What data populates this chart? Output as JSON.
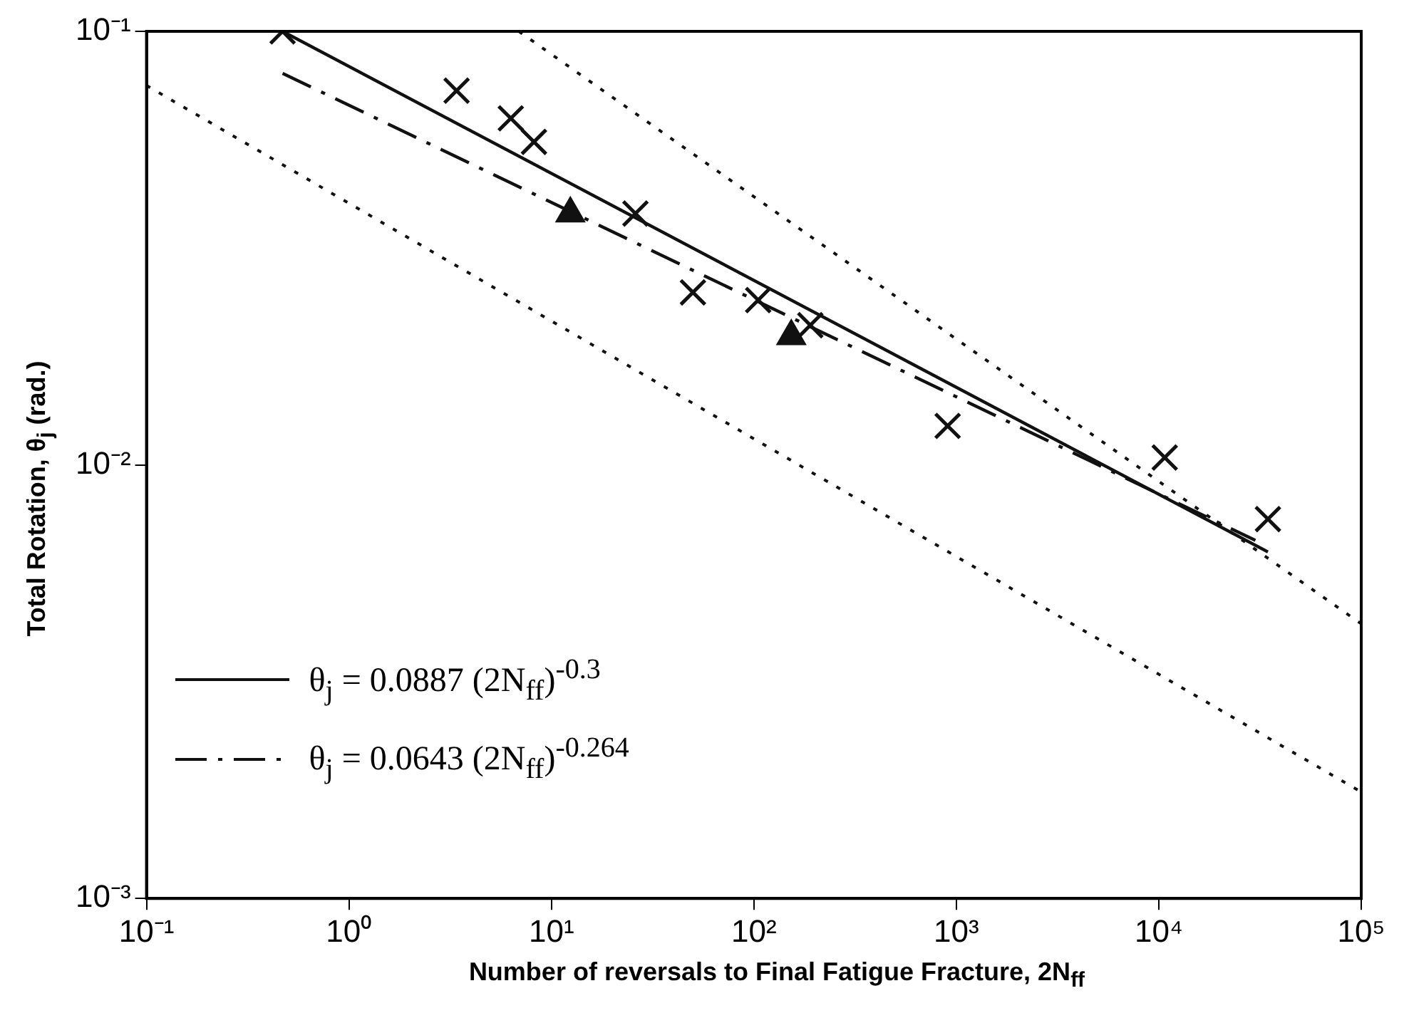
{
  "chart_data": {
    "type": "scatter",
    "xlabel": "Number of reversals to Final Fatigue Fracture, 2N$_{ff}$",
    "ylabel": "Total Rotation, θ$_{j}$ (rad.)",
    "log": "xy",
    "grid": false,
    "legend": "bottom left",
    "xlim": [
      0.1,
      100000
    ],
    "ylim": [
      0.001,
      0.1
    ],
    "xticks": [
      {
        "value": 0.1,
        "label": "10⁻¹"
      },
      {
        "value": 1,
        "label": "10⁰"
      },
      {
        "value": 10,
        "label": "10¹"
      },
      {
        "value": 100,
        "label": "10²"
      },
      {
        "value": 1000,
        "label": "10³"
      },
      {
        "value": 10000,
        "label": "10⁴"
      },
      {
        "value": 100000,
        "label": "10⁵"
      }
    ],
    "yticks": [
      {
        "value": 0.001,
        "label": "10⁻³"
      },
      {
        "value": 0.01,
        "label": "10⁻²"
      },
      {
        "value": 0.1,
        "label": "10⁻¹"
      }
    ],
    "series": [
      {
        "marker": "cross",
        "color": "#111111",
        "x": [
          0.47,
          3.4,
          6.3,
          8.2,
          26,
          50,
          105,
          190,
          906,
          10700,
          34600
        ],
        "values": [
          0.1,
          0.073,
          0.063,
          0.0556,
          0.038,
          0.025,
          0.024,
          0.021,
          0.0123,
          0.0104,
          0.0075
        ]
      },
      {
        "marker": "triangle",
        "color": "#111111",
        "x": [
          12.4,
          153
        ],
        "values": [
          0.038,
          0.0198
        ]
      },
      {
        "type": "line",
        "name": "θ$_{j}$ = 0.0887 (2N$_{ff}$)$^{-0.3}$",
        "line_style": "solid",
        "color": "#111111",
        "x": [
          0.47,
          34600
        ],
        "values": [
          0.1,
          0.0063
        ]
      },
      {
        "type": "line",
        "name": "θ$_{j}$ = 0.0643 (2N$_{ff}$)$^{-0.264}$",
        "line_style": "dashdot",
        "color": "#111111",
        "x": [
          0.47,
          30000
        ],
        "values": [
          0.08,
          0.0067
        ]
      },
      {
        "type": "line",
        "line_style": "dotted",
        "color": "#111111",
        "x": [
          6.9,
          100000
        ],
        "values": [
          0.1,
          0.0043
        ]
      },
      {
        "type": "line",
        "line_style": "dotted",
        "color": "#111111",
        "x": [
          0.1,
          100000
        ],
        "values": [
          0.075,
          0.00176
        ]
      }
    ]
  }
}
